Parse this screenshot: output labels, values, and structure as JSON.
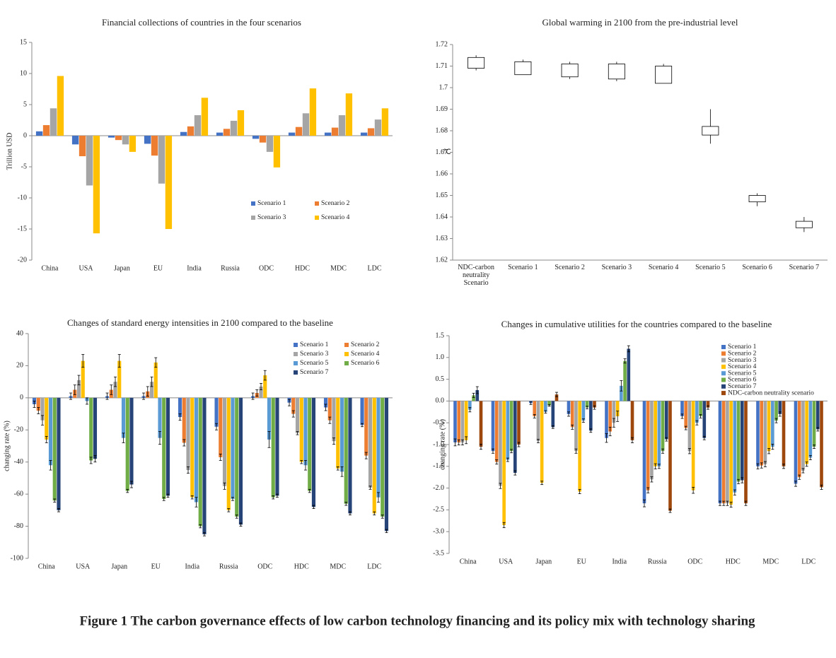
{
  "figure_caption": "Figure 1   The carbon governance effects of low carbon technology financing and its policy mix with technology sharing",
  "chart_data": [
    {
      "type": "bar",
      "title": "Financial collections of countries in the four scenarios",
      "y_label": "Trillion USD",
      "categories": [
        "China",
        "USA",
        "Japan",
        "EU",
        "India",
        "Russia",
        "ODC",
        "HDC",
        "MDC",
        "LDC"
      ],
      "ylim": [
        -20,
        15
      ],
      "yticks": [
        -20,
        -15,
        -10,
        -5,
        0,
        5,
        10,
        15
      ],
      "legend": "lower right",
      "series": [
        {
          "name": "Scenario 1",
          "color": "#4472c4",
          "values": [
            0.7,
            -1.4,
            -0.3,
            -1.3,
            0.6,
            0.5,
            -0.5,
            0.5,
            0.5,
            0.5
          ]
        },
        {
          "name": "Scenario 2",
          "color": "#ed7d31",
          "values": [
            1.7,
            -3.3,
            -0.7,
            -3.2,
            1.5,
            1.1,
            -1.1,
            1.4,
            1.3,
            1.2
          ]
        },
        {
          "name": "Scenario 3",
          "color": "#a5a5a5",
          "values": [
            4.4,
            -8,
            -1.4,
            -7.7,
            3.3,
            2.4,
            -2.6,
            3.6,
            3.3,
            2.6
          ]
        },
        {
          "name": "Scenario 4",
          "color": "#ffc000",
          "values": [
            9.6,
            -15.7,
            -2.6,
            -15,
            6.1,
            4.1,
            -5.1,
            7.6,
            6.8,
            4.4
          ]
        }
      ]
    },
    {
      "type": "box",
      "title": "Global warming  in  2100 from the pre-industrial  level",
      "y_label": "℃",
      "categories": [
        "NDC-carbon neutrality Scenario",
        "Scenario 1",
        "Scenario 2",
        "Scenario 3",
        "Scenario 4",
        "Scenario 5",
        "Scenario 6",
        "Scenario 7"
      ],
      "ylim": [
        1.62,
        1.72
      ],
      "yticks": [
        1.62,
        1.63,
        1.64,
        1.65,
        1.66,
        1.67,
        1.68,
        1.69,
        1.7,
        1.71,
        1.72
      ],
      "low": [
        1.708,
        1.706,
        1.704,
        1.703,
        1.702,
        1.674,
        1.645,
        1.633
      ],
      "q1": [
        1.709,
        1.706,
        1.705,
        1.704,
        1.702,
        1.678,
        1.647,
        1.635
      ],
      "q3": [
        1.714,
        1.712,
        1.711,
        1.711,
        1.71,
        1.682,
        1.65,
        1.638
      ],
      "high": [
        1.715,
        1.713,
        1.712,
        1.712,
        1.711,
        1.69,
        1.651,
        1.64
      ]
    },
    {
      "type": "bar",
      "title": "Changes of standard energy intensities  in 2100 compared to the baseline",
      "y_label": "changing rate (%)",
      "categories": [
        "China",
        "USA",
        "Japan",
        "EU",
        "India",
        "Russia",
        "ODC",
        "HDC",
        "MDC",
        "LDC"
      ],
      "ylim": [
        -100,
        40
      ],
      "yticks": [
        -100,
        -80,
        -60,
        -40,
        -20,
        0,
        20,
        40
      ],
      "legend": "upper right",
      "series": [
        {
          "name": "Scenario 1",
          "color": "#4472c4",
          "values": [
            -4,
            1,
            1,
            1,
            -12,
            -18,
            1,
            -3,
            -6,
            -17
          ],
          "errors": [
            2,
            2,
            2,
            2,
            2,
            2,
            2,
            2,
            2,
            1
          ]
        },
        {
          "name": "Scenario 2",
          "color": "#ed7d31",
          "values": [
            -8,
            5,
            5,
            4,
            -28,
            -37,
            3,
            -10,
            -14,
            -36
          ],
          "errors": [
            2,
            3,
            3,
            3,
            2,
            2,
            2,
            2,
            2,
            2
          ]
        },
        {
          "name": "Scenario 3",
          "color": "#a5a5a5",
          "values": [
            -14,
            11,
            10,
            10,
            -45,
            -55,
            7,
            -22,
            -27,
            -56
          ],
          "errors": [
            3,
            3,
            3,
            3,
            2,
            2,
            2,
            1,
            2,
            1
          ]
        },
        {
          "name": "Scenario 4",
          "color": "#ffc000",
          "values": [
            -26,
            23,
            23,
            22,
            -62,
            -70,
            14,
            -40,
            -44,
            -72
          ],
          "errors": [
            2,
            4,
            4,
            3,
            1,
            1,
            3,
            1,
            1,
            1
          ]
        },
        {
          "name": "Scenario 5",
          "color": "#5b9bd5",
          "values": [
            -42,
            -2,
            -25,
            -25,
            -65,
            -63,
            -26,
            -42,
            -46,
            -62
          ],
          "errors": [
            3,
            2,
            3,
            4,
            3,
            1,
            5,
            3,
            3,
            3
          ]
        },
        {
          "name": "Scenario 6",
          "color": "#70ad47",
          "values": [
            -64,
            -39,
            -58,
            -63,
            -80,
            -74,
            -62,
            -58,
            -66,
            -74
          ],
          "errors": [
            1,
            2,
            1,
            1,
            1,
            1,
            1,
            1,
            1,
            1
          ]
        },
        {
          "name": "Scenario 7",
          "color": "#264478",
          "values": [
            -70,
            -38,
            -54,
            -61,
            -85,
            -79,
            -61,
            -68,
            -72,
            -83
          ],
          "errors": [
            1,
            2,
            2,
            1,
            1,
            1,
            1,
            1,
            1,
            1
          ]
        }
      ]
    },
    {
      "type": "bar",
      "title": "Changes in cumulative  utilities  for the countries compared to the baseline",
      "y_label": "changing rate (%)",
      "categories": [
        "China",
        "USA",
        "Japan",
        "EU",
        "India",
        "Russia",
        "ODC",
        "HDC",
        "MDC",
        "LDC"
      ],
      "ylim": [
        -3.5,
        1.5
      ],
      "yticks": [
        -3.5,
        {
          "value": -3,
          "label": "-3.0"
        },
        -2.5,
        {
          "value": -2,
          "label": "-2.0"
        },
        -1.5,
        {
          "value": -1,
          "label": "-1.0"
        },
        -0.5,
        {
          "value": 0,
          "label": "0.0"
        },
        0.5,
        {
          "value": 1,
          "label": "1.0"
        },
        1.5
      ],
      "legend": "upper right",
      "series": [
        {
          "name": "Scenario 1",
          "color": "#4472c4",
          "values": [
            -0.95,
            -1.15,
            -0.05,
            -0.3,
            -0.85,
            -2.35,
            -0.35,
            -2.35,
            -1.5,
            -1.9
          ],
          "errors": [
            0.08,
            0.05,
            0.03,
            0.05,
            0.1,
            0.08,
            0.05,
            0.05,
            0.06,
            0.06
          ]
        },
        {
          "name": "Scenario 2",
          "color": "#ed7d31",
          "values": [
            -0.95,
            -1.4,
            -0.35,
            -0.6,
            -0.7,
            -2.05,
            -0.62,
            -2.35,
            -1.48,
            -1.75
          ],
          "errors": [
            0.06,
            0.05,
            0.04,
            0.05,
            0.1,
            0.06,
            0.04,
            0.05,
            0.06,
            0.05
          ]
        },
        {
          "name": "Scenario 3",
          "color": "#a5a5a5",
          "values": [
            -0.95,
            -1.95,
            -0.92,
            -1.15,
            -0.5,
            -1.8,
            -1.15,
            -2.35,
            -1.45,
            -1.6
          ],
          "errors": [
            0.06,
            0.06,
            0.04,
            0.05,
            0.1,
            0.06,
            0.06,
            0.05,
            0.06,
            0.05
          ]
        },
        {
          "name": "Scenario 4",
          "color": "#ffc000",
          "values": [
            -0.9,
            -2.85,
            -1.88,
            -2.08,
            -0.35,
            -1.5,
            -2.05,
            -2.38,
            -1.15,
            -1.45
          ],
          "errors": [
            0.08,
            0.06,
            0.04,
            0.05,
            0.12,
            0.06,
            0.07,
            0.06,
            0.06,
            0.05
          ]
        },
        {
          "name": "Scenario 5",
          "color": "#5b9bd5",
          "values": [
            -0.2,
            -1.35,
            -0.25,
            -0.45,
            0.35,
            -1.5,
            -0.5,
            -2.1,
            -1.05,
            -1.3
          ],
          "errors": [
            0.05,
            0.04,
            0.03,
            0.04,
            0.12,
            0.05,
            0.05,
            0.06,
            0.06,
            0.05
          ]
        },
        {
          "name": "Scenario 6",
          "color": "#70ad47",
          "values": [
            0.13,
            -1.15,
            -0.1,
            -0.15,
            0.92,
            -1.15,
            -0.35,
            -1.85,
            -0.45,
            -1.05
          ],
          "errors": [
            0.05,
            0.04,
            0.02,
            0.03,
            0.05,
            0.05,
            0.04,
            0.05,
            0.05,
            0.04
          ]
        },
        {
          "name": "Scenario 7",
          "color": "#264478",
          "values": [
            0.25,
            -1.65,
            -0.6,
            -0.68,
            1.2,
            -0.88,
            -0.85,
            -1.82,
            -0.3,
            -0.65
          ],
          "errors": [
            0.08,
            0.05,
            0.03,
            0.04,
            0.07,
            0.04,
            0.04,
            0.06,
            0.05,
            0.04
          ]
        },
        {
          "name": "NDC-carbon neutrality scenario",
          "color": "#9e480e",
          "values": [
            -1.05,
            -1,
            0.15,
            -0.15,
            -0.9,
            -2.52,
            -0.15,
            -2.35,
            -1.5,
            -1.98
          ],
          "errors": [
            0.06,
            0.05,
            0.05,
            0.04,
            0.06,
            0.04,
            0.04,
            0.05,
            0.05,
            0.05
          ]
        }
      ]
    }
  ]
}
